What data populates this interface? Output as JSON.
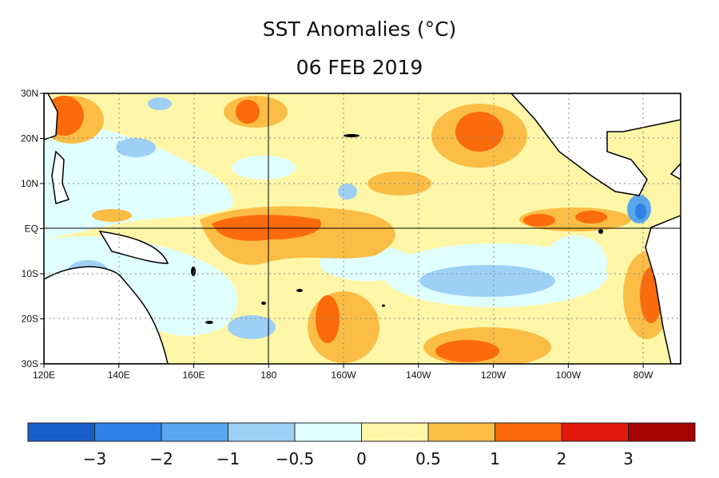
{
  "title": "SST Anomalies (°C)",
  "date": "06 FEB 2019",
  "map": {
    "x_ticks": [
      "120E",
      "140E",
      "160E",
      "180",
      "160W",
      "140W",
      "120W",
      "100W",
      "80W"
    ],
    "y_ticks": [
      "30N",
      "20N",
      "10N",
      "EQ",
      "10S",
      "20S",
      "30S"
    ],
    "lon_range": [
      "120E",
      "70W"
    ],
    "lat_range": [
      "30S",
      "30N"
    ],
    "grid": "dotted, solid at 180 and EQ"
  },
  "colorbar": {
    "labels": [
      "−3",
      "−2",
      "−1",
      "−0.5",
      "0",
      "0.5",
      "1",
      "2",
      "3"
    ],
    "colors": [
      "#1a5fc8",
      "#2d80e6",
      "#58a6ee",
      "#9ed0f6",
      "#e0ffff",
      "#fff6a8",
      "#fbbd45",
      "#fc6b0b",
      "#e2180b",
      "#a50202"
    ]
  }
}
